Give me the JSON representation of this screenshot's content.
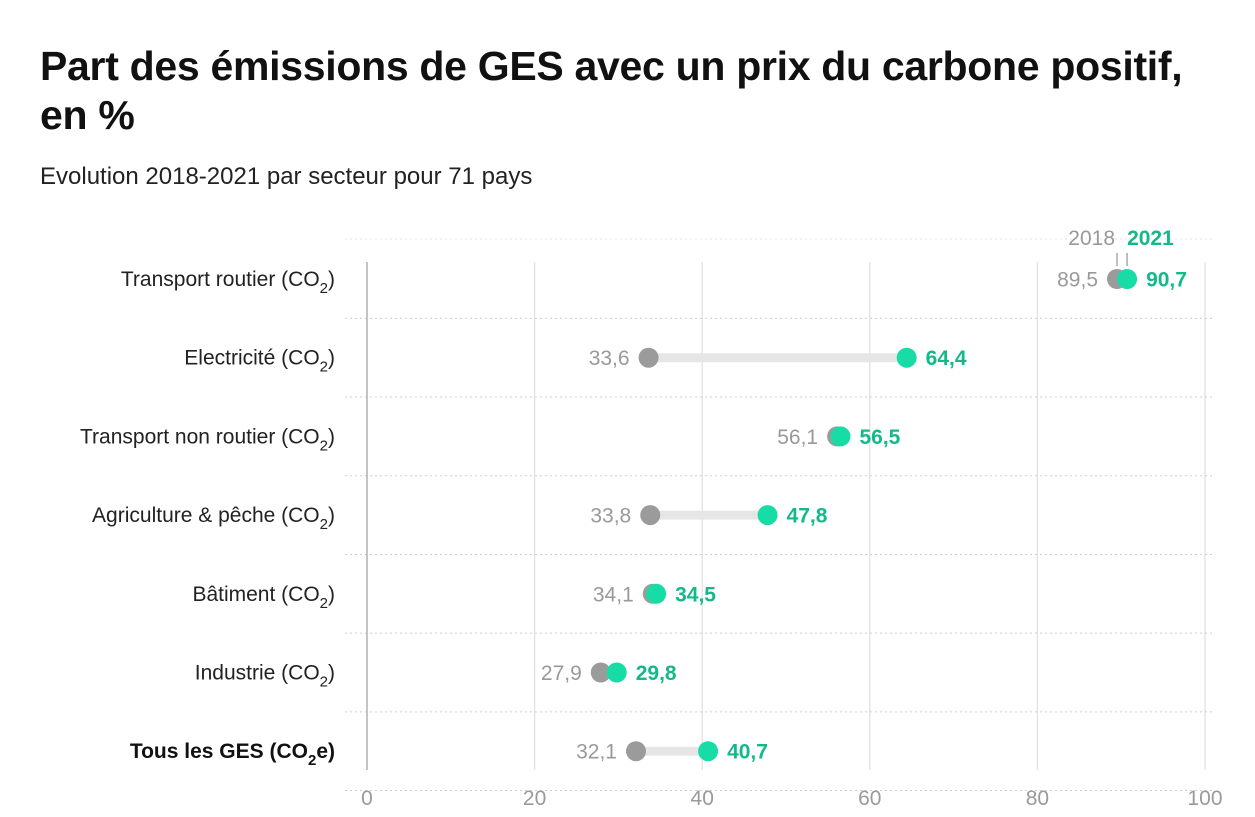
{
  "title": "Part des émissions de GES avec un prix du carbone positif, en %",
  "subtitle": "Evolution 2018-2021 par secteur pour 71 pays",
  "colors": {
    "year_2018": "#9b9b9b",
    "year_2021": "#18dca6",
    "label_2021": "#13b98a",
    "connector": "#e6e6e6"
  },
  "chart_data": {
    "type": "dumbbell",
    "title": "Part des émissions de GES avec un prix du carbone positif, en %",
    "subtitle": "Evolution 2018-2021 par secteur pour 71 pays",
    "xlim": [
      0,
      100
    ],
    "xticks": [
      0,
      20,
      40,
      60,
      80,
      100
    ],
    "xtick_labels": [
      "0",
      "20",
      "40",
      "60",
      "80",
      "100"
    ],
    "legend": {
      "year_2018": "2018",
      "year_2021": "2021",
      "placement": "top-right"
    },
    "grid": true,
    "categories": [
      {
        "label": "Transport routier (CO",
        "sub": "2",
        "suffix": ")",
        "v2018": 89.5,
        "v2021": 90.7,
        "l2018": "89,5",
        "l2021": "90,7",
        "bold": false
      },
      {
        "label": "Electricité (CO",
        "sub": "2",
        "suffix": ")",
        "v2018": 33.6,
        "v2021": 64.4,
        "l2018": "33,6",
        "l2021": "64,4",
        "bold": false
      },
      {
        "label": "Transport non routier (CO",
        "sub": "2",
        "suffix": ")",
        "v2018": 56.1,
        "v2021": 56.5,
        "l2018": "56,1",
        "l2021": "56,5",
        "bold": false
      },
      {
        "label": "Agriculture & pêche (CO",
        "sub": "2",
        "suffix": ")",
        "v2018": 33.8,
        "v2021": 47.8,
        "l2018": "33,8",
        "l2021": "47,8",
        "bold": false
      },
      {
        "label": "Bâtiment (CO",
        "sub": "2",
        "suffix": ")",
        "v2018": 34.1,
        "v2021": 34.5,
        "l2018": "34,1",
        "l2021": "34,5",
        "bold": false
      },
      {
        "label": "Industrie (CO",
        "sub": "2",
        "suffix": ")",
        "v2018": 27.9,
        "v2021": 29.8,
        "l2018": "27,9",
        "l2021": "29,8",
        "bold": false
      },
      {
        "label": "Tous les GES (CO",
        "sub": "2",
        "suffix": "e)",
        "v2018": 32.1,
        "v2021": 40.7,
        "l2018": "32,1",
        "l2021": "40,7",
        "bold": true
      }
    ]
  }
}
